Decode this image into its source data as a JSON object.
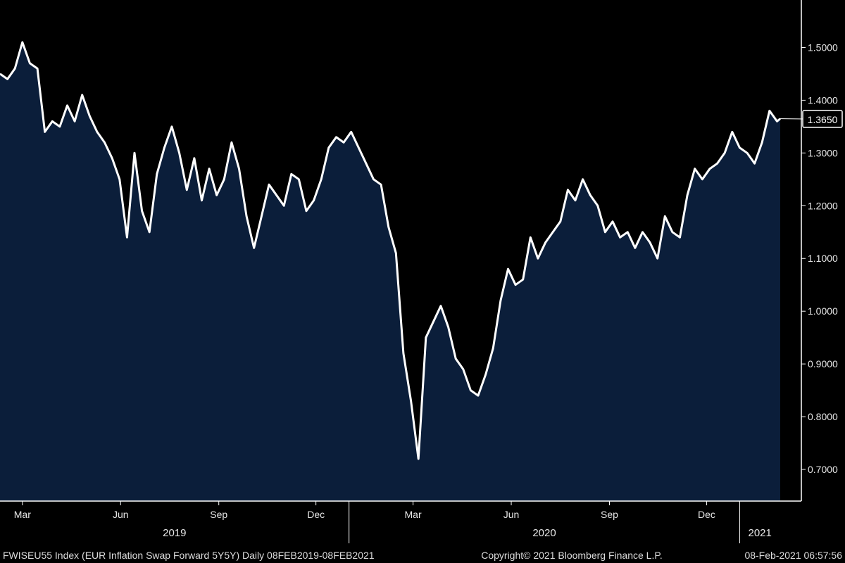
{
  "chart_data": {
    "type": "area",
    "ylim": [
      0.64,
      1.59
    ],
    "xlim": [
      "2019-02-08",
      "2021-02-08"
    ],
    "y_ticks": [
      0.7,
      0.8,
      0.9,
      1.0,
      1.1,
      1.2,
      1.3,
      1.4,
      1.5
    ],
    "y_tick_labels": [
      "0.7000",
      "0.8000",
      "0.9000",
      "1.0000",
      "1.1000",
      "1.2000",
      "1.3000",
      "1.4000",
      "1.5000"
    ],
    "x_ticks": [
      {
        "date": "2019-03-01",
        "label": "Mar"
      },
      {
        "date": "2019-06-01",
        "label": "Jun"
      },
      {
        "date": "2019-09-01",
        "label": "Sep"
      },
      {
        "date": "2019-12-01",
        "label": "Dec"
      },
      {
        "date": "2020-03-01",
        "label": "Mar"
      },
      {
        "date": "2020-06-01",
        "label": "Jun"
      },
      {
        "date": "2020-09-01",
        "label": "Sep"
      },
      {
        "date": "2020-12-01",
        "label": "Dec"
      }
    ],
    "year_labels": [
      {
        "label": "2019",
        "from": "2019-02-08",
        "to": "2020-01-01"
      },
      {
        "label": "2020",
        "from": "2020-01-01",
        "to": "2021-01-01"
      },
      {
        "label": "2021",
        "from": "2021-01-01",
        "to": "2021-02-08"
      }
    ],
    "year_dividers": [
      "2020-01-01",
      "2021-01-01"
    ],
    "last_value": 1.365,
    "last_value_label": "1.3650",
    "colors": {
      "line": "#ffffff",
      "area": "#0b1e3a",
      "background": "#000000",
      "badge_border": "#ffffff"
    },
    "grid": false,
    "series": [
      {
        "x": [
          "2019-02-08",
          "2019-02-15",
          "2019-02-22",
          "2019-03-01",
          "2019-03-08",
          "2019-03-15",
          "2019-03-22",
          "2019-03-29",
          "2019-04-05",
          "2019-04-12",
          "2019-04-19",
          "2019-04-26",
          "2019-05-03",
          "2019-05-10",
          "2019-05-17",
          "2019-05-24",
          "2019-05-31",
          "2019-06-07",
          "2019-06-14",
          "2019-06-21",
          "2019-06-28",
          "2019-07-05",
          "2019-07-12",
          "2019-07-19",
          "2019-07-26",
          "2019-08-02",
          "2019-08-09",
          "2019-08-16",
          "2019-08-23",
          "2019-08-30",
          "2019-09-06",
          "2019-09-13",
          "2019-09-20",
          "2019-09-27",
          "2019-10-04",
          "2019-10-11",
          "2019-10-18",
          "2019-10-25",
          "2019-11-01",
          "2019-11-08",
          "2019-11-15",
          "2019-11-22",
          "2019-11-29",
          "2019-12-06",
          "2019-12-13",
          "2019-12-20",
          "2019-12-27",
          "2020-01-03",
          "2020-01-10",
          "2020-01-17",
          "2020-01-24",
          "2020-01-31",
          "2020-02-07",
          "2020-02-14",
          "2020-02-21",
          "2020-02-28",
          "2020-03-06",
          "2020-03-13",
          "2020-03-20",
          "2020-03-27",
          "2020-04-03",
          "2020-04-10",
          "2020-04-17",
          "2020-04-24",
          "2020-05-01",
          "2020-05-08",
          "2020-05-15",
          "2020-05-22",
          "2020-05-29",
          "2020-06-05",
          "2020-06-12",
          "2020-06-19",
          "2020-06-26",
          "2020-07-03",
          "2020-07-10",
          "2020-07-17",
          "2020-07-24",
          "2020-07-31",
          "2020-08-07",
          "2020-08-14",
          "2020-08-21",
          "2020-08-28",
          "2020-09-04",
          "2020-09-11",
          "2020-09-18",
          "2020-09-25",
          "2020-10-02",
          "2020-10-09",
          "2020-10-16",
          "2020-10-23",
          "2020-10-30",
          "2020-11-06",
          "2020-11-13",
          "2020-11-20",
          "2020-11-27",
          "2020-12-04",
          "2020-12-11",
          "2020-12-18",
          "2020-12-25",
          "2021-01-01",
          "2021-01-08",
          "2021-01-15",
          "2021-01-22",
          "2021-01-29",
          "2021-02-05",
          "2021-02-08"
        ],
        "y": [
          1.45,
          1.44,
          1.46,
          1.51,
          1.47,
          1.46,
          1.34,
          1.36,
          1.35,
          1.39,
          1.36,
          1.41,
          1.37,
          1.34,
          1.32,
          1.29,
          1.25,
          1.14,
          1.3,
          1.19,
          1.15,
          1.26,
          1.31,
          1.35,
          1.3,
          1.23,
          1.29,
          1.21,
          1.27,
          1.22,
          1.25,
          1.32,
          1.27,
          1.18,
          1.12,
          1.18,
          1.24,
          1.22,
          1.2,
          1.26,
          1.25,
          1.19,
          1.21,
          1.25,
          1.31,
          1.33,
          1.32,
          1.34,
          1.31,
          1.28,
          1.25,
          1.24,
          1.16,
          1.11,
          0.92,
          0.83,
          0.72,
          0.95,
          0.98,
          1.01,
          0.97,
          0.91,
          0.89,
          0.85,
          0.84,
          0.88,
          0.93,
          1.02,
          1.08,
          1.05,
          1.06,
          1.14,
          1.1,
          1.13,
          1.15,
          1.17,
          1.23,
          1.21,
          1.25,
          1.22,
          1.2,
          1.15,
          1.17,
          1.14,
          1.15,
          1.12,
          1.15,
          1.13,
          1.1,
          1.18,
          1.15,
          1.14,
          1.22,
          1.27,
          1.25,
          1.27,
          1.28,
          1.3,
          1.34,
          1.31,
          1.3,
          1.28,
          1.32,
          1.38,
          1.36,
          1.365
        ]
      }
    ]
  },
  "footer": {
    "left": "FWISEU55 Index (EUR Inflation Swap Forward 5Y5Y)  Daily 08FEB2019-08FEB2021",
    "center": "Copyright© 2021 Bloomberg Finance L.P.",
    "right": "08-Feb-2021 06:57:56"
  }
}
